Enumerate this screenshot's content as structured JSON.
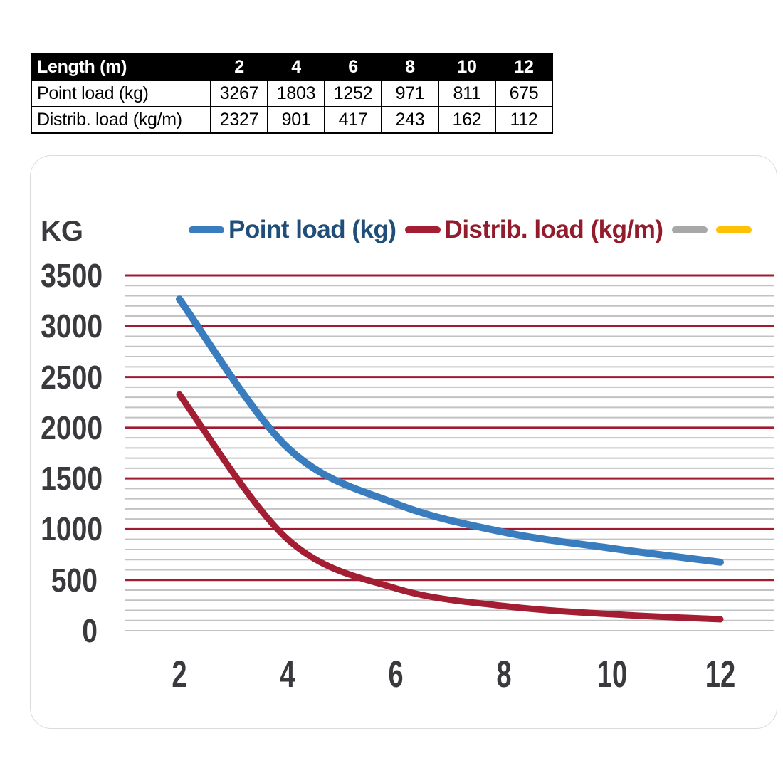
{
  "table": {
    "header": [
      "Length (m)",
      "2",
      "4",
      "6",
      "8",
      "10",
      "12"
    ],
    "rows": [
      [
        "Point load (kg)",
        "3267",
        "1803",
        "1252",
        "971",
        "811",
        "675"
      ],
      [
        "Distrib. load (kg/m)",
        "2327",
        "901",
        "417",
        "243",
        "162",
        "112"
      ]
    ]
  },
  "chart_data": {
    "type": "line",
    "y_axis_title": "KG",
    "x": [
      2,
      4,
      6,
      8,
      10,
      12
    ],
    "series": [
      {
        "name": "Point load (kg)",
        "color": "#3a7dbf",
        "stroke_width": 10,
        "values": [
          3267,
          1803,
          1252,
          971,
          811,
          675
        ]
      },
      {
        "name": "Distrib. load (kg/m)",
        "color": "#a31d33",
        "stroke_width": 9,
        "values": [
          2327,
          901,
          417,
          243,
          162,
          112
        ]
      }
    ],
    "legend_items": [
      {
        "label": "Point load (kg)",
        "swatch_color": "#3a7dbf",
        "label_color": "#1f4e79"
      },
      {
        "label": "Distrib. load (kg/m)",
        "swatch_color": "#a31d33",
        "label_color": "#931c2c"
      },
      {
        "label": "",
        "swatch_color": "#a8a8a8",
        "label_color": "#3a3a3e"
      },
      {
        "label": "",
        "swatch_color": "#ffc107",
        "label_color": "#3a3a3e"
      }
    ],
    "xlim": [
      1,
      13
    ],
    "ylim": [
      0,
      3500
    ],
    "xticks": [
      2,
      4,
      6,
      8,
      10,
      12
    ],
    "yticks": [
      0,
      500,
      1000,
      1500,
      2000,
      2500,
      3000,
      3500
    ],
    "grid": {
      "minor_step": 100,
      "minor_color": "#c2c2c5",
      "minor_width": 2,
      "major_step": 500,
      "major_color": "#9e1b32",
      "major_width": 3,
      "zero_line_color": "#c2c2c5",
      "vertical_grid": false
    },
    "legend_position": "top"
  }
}
